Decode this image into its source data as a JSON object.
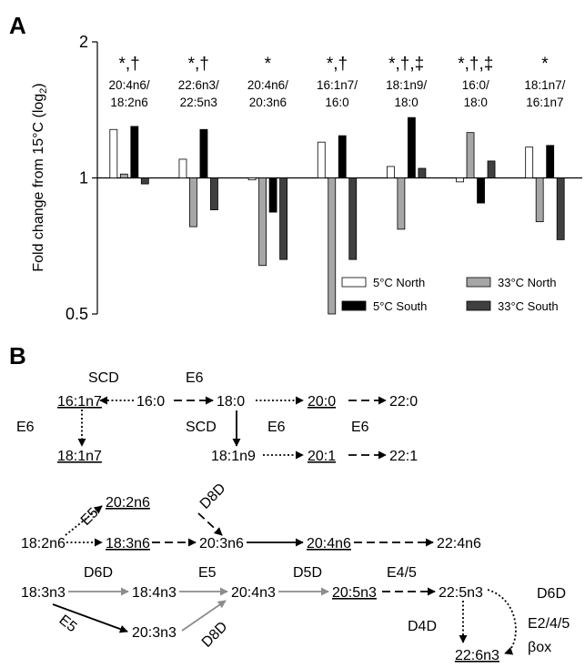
{
  "panel_a_letter": "A",
  "panel_b_letter": "B",
  "chart_data": {
    "type": "bar",
    "ylabel_main": "Fold change from 15°C (log",
    "ylabel_sub": "2",
    "ylabel_close": ")",
    "yscale": "log2",
    "ylim": [
      0.5,
      2
    ],
    "yticks": [
      {
        "label": "2",
        "v": 2
      },
      {
        "label": "1",
        "v": 1
      },
      {
        "label": "0.5",
        "v": 0.5
      }
    ],
    "baseline": 1,
    "legend_position": "bottom-right",
    "series": [
      {
        "name": "5°C North",
        "color": "#ffffff"
      },
      {
        "name": "33°C North",
        "color": "#a6a6a6"
      },
      {
        "name": "5°C South",
        "color": "#000000"
      },
      {
        "name": "33°C South",
        "color": "#404040"
      }
    ],
    "groups": [
      {
        "sym": "*,†",
        "l1": "20:4n6/",
        "l2": "18:2n6",
        "values": [
          1.28,
          1.02,
          1.3,
          0.97
        ]
      },
      {
        "sym": "*,†",
        "l1": "22:6n3/",
        "l2": "22:5n3",
        "values": [
          1.1,
          0.78,
          1.28,
          0.85
        ]
      },
      {
        "sym": "*",
        "l1": "20:4n6/",
        "l2": "20:3n6",
        "values": [
          0.99,
          0.64,
          0.84,
          0.66
        ]
      },
      {
        "sym": "*,†",
        "l1": "16:1n7/",
        "l2": "16:0",
        "values": [
          1.2,
          0.5,
          1.24,
          0.66
        ]
      },
      {
        "sym": "*,†,‡",
        "l1": "18:1n9/",
        "l2": "18:0",
        "values": [
          1.06,
          0.77,
          1.36,
          1.05
        ]
      },
      {
        "sym": "*,†,‡",
        "l1": "16:0/",
        "l2": "18:0",
        "values": [
          0.98,
          1.26,
          0.88,
          1.09
        ]
      },
      {
        "sym": "*",
        "l1": "18:1n7/",
        "l2": "16:1n7",
        "values": [
          1.17,
          0.8,
          1.18,
          0.73
        ]
      }
    ]
  },
  "pathway": {
    "fatty_acids": {
      "fa_16_1n7": "16:1n7",
      "fa_16_0": "16:0",
      "fa_18_0": "18:0",
      "fa_20_0": "20:0",
      "fa_22_0": "22:0",
      "fa_18_1n7": "18:1n7",
      "fa_18_1n9": "18:1n9",
      "fa_20_1": "20:1",
      "fa_22_1": "22:1",
      "fa_20_2n6": "20:2n6",
      "fa_18_2n6": "18:2n6",
      "fa_18_3n6": "18:3n6",
      "fa_20_3n6": "20:3n6",
      "fa_20_4n6": "20:4n6",
      "fa_22_4n6": "22:4n6",
      "fa_18_3n3": "18:3n3",
      "fa_18_4n3": "18:4n3",
      "fa_20_4n3": "20:4n3",
      "fa_20_5n3": "20:5n3",
      "fa_22_5n3": "22:5n3",
      "fa_20_3n3": "20:3n3",
      "fa_22_6n3": "22:6n3"
    },
    "enzymes": {
      "scd_top": "SCD",
      "e6_top": "E6",
      "e6_left": "E6",
      "scd_down": "SCD",
      "e6_mid1": "E6",
      "e6_mid2": "E6",
      "e5_up": "E5",
      "d8d_up": "D8D",
      "d6d_left": "D6D",
      "e5_mid": "E5",
      "d5d": "D5D",
      "e45": "E4/5",
      "d6d_right": "D6D",
      "e245": "E2/4/5",
      "box": "βox",
      "d4d": "D4D",
      "e5_low": "E5",
      "d8d_low": "D8D"
    }
  }
}
